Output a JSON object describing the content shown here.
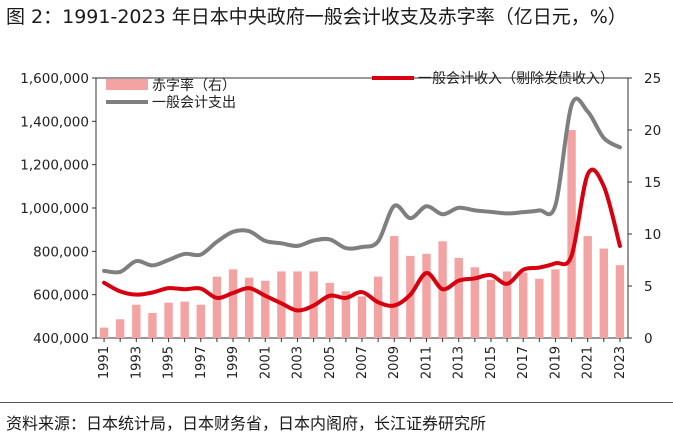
{
  "title": "图 2：1991-2023 年日本中央政府一般会计收支及赤字率（亿日元，%）",
  "source": "资料来源：日本统计局，日本财务省，日本内阁府，长江证券研究所",
  "chart_data": {
    "type": "bar+line",
    "x": [
      1991,
      1992,
      1993,
      1994,
      1995,
      1996,
      1997,
      1998,
      1999,
      2000,
      2001,
      2002,
      2003,
      2004,
      2005,
      2006,
      2007,
      2008,
      2009,
      2010,
      2011,
      2012,
      2013,
      2014,
      2015,
      2016,
      2017,
      2018,
      2019,
      2020,
      2021,
      2022,
      2023
    ],
    "x_tick_labels": [
      "1991",
      "1993",
      "1995",
      "1997",
      "1999",
      "2001",
      "2003",
      "2005",
      "2007",
      "2009",
      "2011",
      "2013",
      "2015",
      "2017",
      "2019",
      "2021",
      "2023"
    ],
    "left_axis": {
      "min": 400000,
      "max": 1600000,
      "step": 200000,
      "tick_labels": [
        "400,000",
        "600,000",
        "800,000",
        "1,000,000",
        "1,200,000",
        "1,400,000",
        "1,600,000"
      ]
    },
    "right_axis": {
      "min": 0,
      "max": 25,
      "step": 5,
      "tick_labels": [
        "0",
        "5",
        "10",
        "15",
        "20",
        "25"
      ]
    },
    "series": [
      {
        "name": "赤字率（右）",
        "type": "bar",
        "axis": "right",
        "color": "#f4a3a3",
        "values": [
          1.0,
          1.8,
          3.2,
          2.4,
          3.4,
          3.5,
          3.2,
          5.9,
          6.6,
          5.8,
          5.5,
          6.4,
          6.4,
          6.4,
          5.3,
          4.5,
          4.0,
          5.9,
          9.8,
          7.9,
          8.1,
          9.3,
          7.7,
          6.8,
          5.6,
          6.4,
          6.3,
          5.7,
          6.6,
          20.0,
          9.8,
          8.6,
          7.0
        ]
      },
      {
        "name": "一般会计收入（剔除发债收入）",
        "type": "line",
        "axis": "left",
        "color": "#d8000f",
        "values": [
          655000,
          615000,
          600000,
          610000,
          630000,
          625000,
          628000,
          585000,
          608000,
          630000,
          595000,
          560000,
          527000,
          550000,
          595000,
          585000,
          612000,
          565000,
          550000,
          600000,
          700000,
          625000,
          665000,
          675000,
          690000,
          650000,
          715000,
          725000,
          745000,
          780000,
          1155000,
          1100000,
          825000
        ]
      },
      {
        "name": "一般会计支出",
        "type": "line",
        "axis": "left",
        "color": "#7f7f7f",
        "values": [
          710000,
          705000,
          755000,
          735000,
          760000,
          788000,
          785000,
          844000,
          890000,
          893000,
          848000,
          837000,
          825000,
          850000,
          855000,
          815000,
          820000,
          846000,
          1010000,
          953000,
          1008000,
          971000,
          1001000,
          989000,
          982000,
          975000,
          981000,
          989000,
          1013000,
          1475000,
          1445000,
          1323000,
          1280000
        ]
      }
    ],
    "legend": [
      {
        "label": "赤字率（右）",
        "series": 0,
        "placement": "top-left"
      },
      {
        "label": "一般会计支出",
        "series": 2,
        "placement": "top-left"
      },
      {
        "label": "一般会计收入（剔除发债收入）",
        "series": 1,
        "placement": "top-right"
      }
    ]
  }
}
